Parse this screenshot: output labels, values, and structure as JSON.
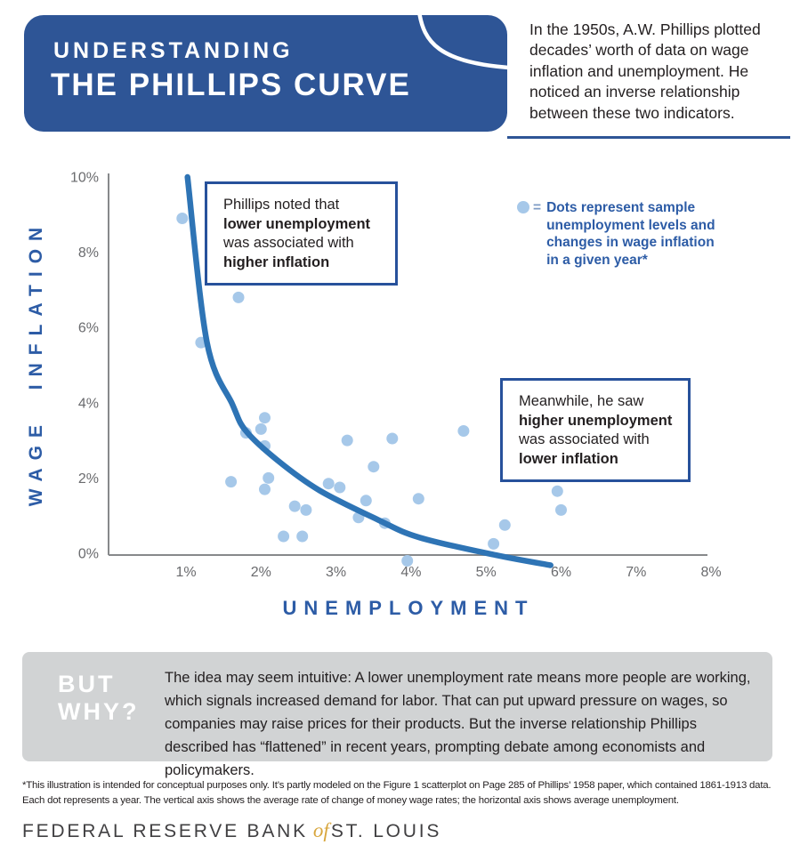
{
  "header": {
    "kicker": "UNDERSTANDING",
    "title": "THE PHILLIPS CURVE",
    "intro": "In the 1950s, A.W. Phillips plotted decades’ worth of data on wage inflation and unemployment. He noticed an inverse relationship between these two indicators."
  },
  "chart_data": {
    "type": "scatter",
    "xlabel": "UNEMPLOYMENT",
    "ylabel": "WAGE INFLATION",
    "xlim": [
      0,
      8
    ],
    "ylim": [
      0,
      10
    ],
    "x_ticks": [
      1,
      2,
      3,
      4,
      5,
      6,
      7,
      8
    ],
    "x_tick_labels": [
      "1%",
      "2%",
      "3%",
      "4%",
      "5%",
      "6%",
      "7%",
      "8%"
    ],
    "y_ticks": [
      0,
      2,
      4,
      6,
      8,
      10
    ],
    "y_tick_labels": [
      "0%",
      "2%",
      "4%",
      "6%",
      "8%",
      "10%"
    ],
    "grid": false,
    "points_unit": "[unemployment %, wage inflation %] one dot per sample year",
    "points": [
      [
        0.95,
        8.9
      ],
      [
        1.2,
        5.6
      ],
      [
        1.7,
        6.8
      ],
      [
        1.6,
        1.9
      ],
      [
        1.8,
        3.2
      ],
      [
        2.0,
        3.3
      ],
      [
        2.05,
        3.6
      ],
      [
        2.05,
        2.85
      ],
      [
        2.1,
        2.0
      ],
      [
        2.05,
        1.7
      ],
      [
        2.3,
        0.45
      ],
      [
        2.45,
        1.25
      ],
      [
        2.55,
        0.45
      ],
      [
        2.6,
        1.15
      ],
      [
        2.9,
        1.85
      ],
      [
        3.05,
        1.75
      ],
      [
        3.15,
        3.0
      ],
      [
        3.3,
        0.95
      ],
      [
        3.4,
        1.4
      ],
      [
        3.5,
        2.3
      ],
      [
        3.65,
        0.8
      ],
      [
        3.75,
        3.05
      ],
      [
        3.95,
        -0.2
      ],
      [
        4.1,
        1.45
      ],
      [
        4.7,
        3.25
      ],
      [
        5.1,
        0.25
      ],
      [
        5.25,
        0.75
      ],
      [
        5.95,
        1.65
      ],
      [
        6.0,
        1.15
      ]
    ],
    "trend_line": {
      "description": "Downward-sloping hyperbolic Phillips curve fit",
      "points": [
        [
          1.02,
          10.0
        ],
        [
          1.28,
          5.6
        ],
        [
          1.62,
          3.95
        ],
        [
          1.8,
          3.25
        ],
        [
          2.22,
          2.47
        ],
        [
          2.78,
          1.67
        ],
        [
          3.56,
          0.89
        ],
        [
          4.11,
          0.42
        ],
        [
          5.13,
          -0.05
        ],
        [
          5.86,
          -0.32
        ]
      ]
    }
  },
  "callouts": [
    {
      "lines": [
        {
          "text": "Phillips noted that",
          "bold": false
        },
        {
          "text": "lower unemployment",
          "bold": true
        },
        {
          "text": "was associated with",
          "bold": false
        },
        {
          "text": "higher inflation",
          "bold": true
        }
      ]
    },
    {
      "lines": [
        {
          "text": "Meanwhile, he saw",
          "bold": false
        },
        {
          "text": "higher unemployment",
          "bold": true
        },
        {
          "text": "was associated with",
          "bold": false
        },
        {
          "text": "lower inflation",
          "bold": true
        }
      ]
    }
  ],
  "legend": {
    "equals": "=",
    "lines": [
      "Dots represent sample",
      "unemployment levels and",
      "changes in wage inflation",
      "in a given year*"
    ]
  },
  "why_box": {
    "heading_line1": "BUT",
    "heading_line2": "WHY?",
    "body": "The idea may seem intuitive: A lower unemployment rate means more people are working, which signals increased demand for labor. That can put upward pressure on wages, so companies may raise prices for their products. But the inverse relationship Phillips described has “flattened” in recent years, prompting debate among economists and policymakers."
  },
  "footnote": {
    "lines": [
      "*This illustration is intended for conceptual purposes only. It’s partly modeled on the Figure 1 scatterplot on Page 285 of Phillips’ 1958 paper, which contained 1861-1913 data.",
      "Each dot represents a year. The vertical axis shows the average rate of change of money wage rates; the horizontal axis shows average unemployment."
    ]
  },
  "logo": {
    "part1": "FEDERAL RESERVE BANK",
    "of": "of",
    "part2": "ST. LOUIS"
  },
  "colors": {
    "header_blue": "#2E5596",
    "curve_blue": "#2E74B5",
    "dot_blue": "#A6C8E9",
    "accent_text_blue": "#2D5CA6",
    "callout_border": "#27519B",
    "axis_gray": "#87898B",
    "tick_gray": "#6A6B6E",
    "panel_gray": "#D1D3D4",
    "gold": "#D8A63D"
  }
}
